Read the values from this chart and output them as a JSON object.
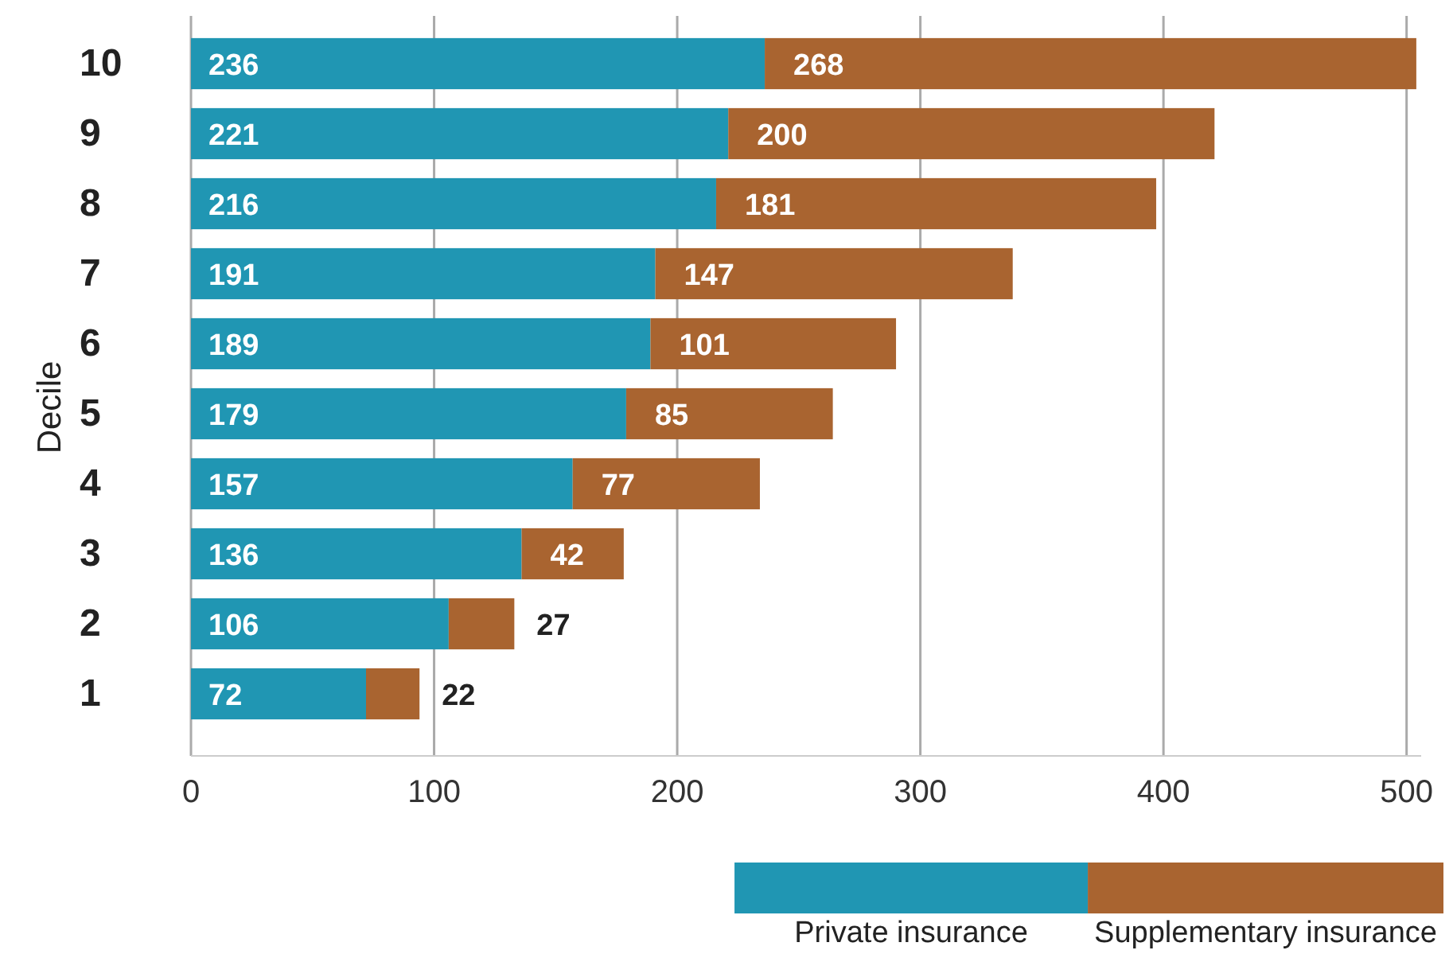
{
  "chart_data": {
    "type": "bar",
    "orientation": "horizontal",
    "stacked": true,
    "categories": [
      "10",
      "9",
      "8",
      "7",
      "6",
      "5",
      "4",
      "3",
      "2",
      "1"
    ],
    "series": [
      {
        "name": "Private insurance",
        "color": "#2096b3",
        "values": [
          236,
          221,
          216,
          191,
          189,
          179,
          157,
          136,
          106,
          72
        ]
      },
      {
        "name": "Supplementary insurance",
        "color": "#a96430",
        "values": [
          268,
          200,
          181,
          147,
          101,
          85,
          77,
          42,
          27,
          22
        ]
      }
    ],
    "ylabel": "Decile",
    "xlim": [
      0,
      506
    ],
    "xticks": [
      0,
      100,
      200,
      300,
      400,
      500
    ],
    "grid": "x",
    "legend": "bottom right",
    "data_labels": true
  }
}
